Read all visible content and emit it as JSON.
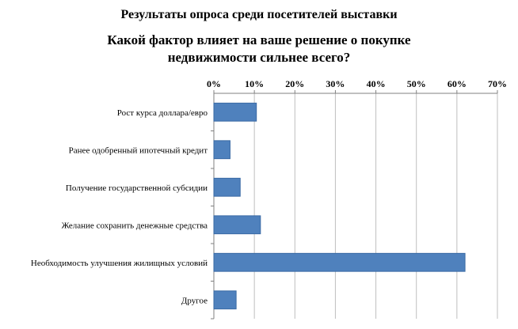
{
  "chart_data": {
    "type": "bar",
    "orientation": "horizontal",
    "title": "Результаты опроса среди посетителей выставки",
    "subtitle": "Какой фактор влияет на ваше решение о покупке\nнедвижимости сильнее всего?",
    "categories": [
      "Рост курса доллара/евро",
      "Ранее одобренный ипотечный кредит",
      "Получение государственной субсидии",
      "Желание сохранить денежные средства",
      "Необходимость улучшения жилищных условий",
      "Другое"
    ],
    "values": [
      10.5,
      4,
      6.5,
      11.5,
      62,
      5.5
    ],
    "x_ticks": [
      "0%",
      "10%",
      "20%",
      "30%",
      "40%",
      "50%",
      "60%",
      "70%"
    ],
    "xlim": [
      0,
      70
    ],
    "x_axis_position": "top",
    "grid": true,
    "bar_color": "#4F81BD"
  }
}
